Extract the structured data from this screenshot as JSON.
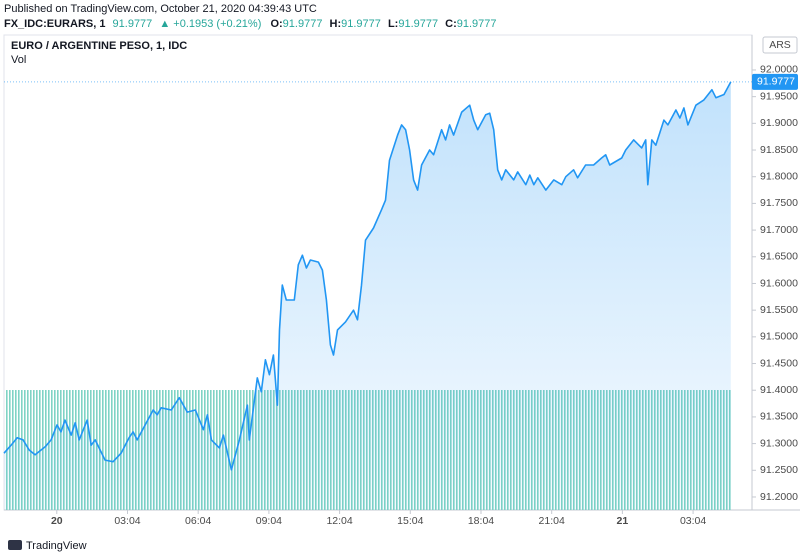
{
  "header": {
    "published": "Published on TradingView.com, October 21, 2020 04:39:43 UTC",
    "symbol": "FX_IDC:EURARS, 1",
    "last": "91.9777",
    "change": "▲ +0.1953 (+0.21%)",
    "ohlc": [
      {
        "label": "O:",
        "value": "91.9777"
      },
      {
        "label": "H:",
        "value": "91.9777"
      },
      {
        "label": "L:",
        "value": "91.9777"
      },
      {
        "label": "C:",
        "value": "91.9777"
      }
    ],
    "currency": "ARS",
    "brand": "TradingView"
  },
  "chart_data": {
    "type": "area",
    "volume_label": "Vol",
    "last_price_label": "91.9777",
    "series": [
      {
        "name": "EURO / ARGENTINE PESO, 1, IDC",
        "color": "#2196f3",
        "x": [
          -2.17,
          -1.87,
          -1.61,
          -1.36,
          -1.1,
          -0.85,
          -0.42,
          -0.17,
          0.08,
          0.25,
          0.42,
          0.68,
          0.85,
          1.02,
          1.36,
          1.53,
          1.7,
          2.12,
          2.46,
          2.8,
          3.14,
          3.31,
          3.48,
          3.82,
          4.16,
          4.33,
          4.5,
          4.93,
          5.27,
          5.61,
          5.95,
          6.29,
          6.46,
          6.63,
          6.97,
          7.14,
          7.48,
          7.82,
          8.16,
          8.24,
          8.58,
          8.75,
          8.92,
          9.09,
          9.26,
          9.43,
          9.52,
          9.64,
          9.81,
          10.15,
          10.32,
          10.49,
          10.66,
          10.83,
          11.17,
          11.34,
          11.51,
          11.68,
          11.81,
          11.98,
          12.32,
          12.66,
          12.83,
          13.0,
          13.17,
          13.51,
          13.85,
          14.02,
          14.19,
          14.53,
          14.7,
          14.87,
          15.04,
          15.21,
          15.38,
          15.55,
          15.89,
          16.06,
          16.4,
          16.57,
          16.74,
          16.91,
          17.25,
          17.59,
          17.76,
          17.93,
          18.27,
          18.44,
          18.61,
          18.78,
          18.95,
          19.12,
          19.46,
          19.63,
          19.97,
          20.14,
          20.31,
          20.48,
          20.82,
          21.16,
          21.5,
          21.67,
          22.0,
          22.17,
          22.51,
          22.85,
          23.19,
          23.36,
          23.53,
          24.04,
          24.21,
          24.55,
          24.89,
          25.06,
          25.15,
          25.32,
          25.49,
          25.83,
          26.0,
          26.34,
          26.51,
          26.68,
          26.85,
          27.19,
          27.53,
          27.87,
          28.04,
          28.38,
          28.67
        ],
        "values": [
          91.282,
          91.297,
          91.311,
          91.307,
          91.288,
          91.279,
          91.294,
          91.307,
          91.335,
          91.322,
          91.344,
          91.316,
          91.339,
          91.307,
          91.344,
          91.297,
          91.307,
          91.269,
          91.266,
          91.282,
          91.311,
          91.322,
          91.307,
          91.335,
          91.363,
          91.354,
          91.367,
          91.363,
          91.386,
          91.359,
          91.363,
          91.326,
          91.354,
          91.307,
          91.292,
          91.316,
          91.251,
          91.307,
          91.372,
          91.307,
          91.423,
          91.397,
          91.457,
          91.429,
          91.466,
          91.372,
          91.513,
          91.597,
          91.569,
          91.569,
          91.635,
          91.653,
          91.629,
          91.644,
          91.64,
          91.625,
          91.569,
          91.485,
          91.466,
          91.513,
          91.528,
          91.55,
          91.532,
          91.597,
          91.681,
          91.704,
          91.738,
          91.756,
          91.831,
          91.878,
          91.897,
          91.888,
          91.85,
          91.794,
          91.775,
          91.822,
          91.85,
          91.841,
          91.888,
          91.869,
          91.897,
          91.878,
          91.921,
          91.934,
          91.906,
          91.888,
          91.916,
          91.919,
          91.888,
          91.813,
          91.794,
          91.813,
          91.794,
          91.809,
          91.785,
          91.803,
          91.785,
          91.798,
          91.775,
          91.794,
          91.785,
          91.8,
          91.813,
          91.798,
          91.822,
          91.822,
          91.835,
          91.841,
          91.822,
          91.835,
          91.85,
          91.869,
          91.854,
          91.869,
          91.785,
          91.869,
          91.859,
          91.906,
          91.897,
          91.925,
          91.91,
          91.929,
          91.897,
          91.934,
          91.944,
          91.963,
          91.948,
          91.954,
          91.9777
        ]
      }
    ],
    "xlim": [
      -2.17,
      29.57
    ],
    "xticks": [
      {
        "value": 0.07,
        "label": "20"
      },
      {
        "value": 3.07,
        "label": "03:04"
      },
      {
        "value": 6.07,
        "label": "06:04"
      },
      {
        "value": 9.07,
        "label": "09:04"
      },
      {
        "value": 12.07,
        "label": "12:04"
      },
      {
        "value": 15.07,
        "label": "15:04"
      },
      {
        "value": 18.07,
        "label": "18:04"
      },
      {
        "value": 21.07,
        "label": "21:04"
      },
      {
        "value": 24.07,
        "label": "21"
      },
      {
        "value": 27.07,
        "label": "03:04"
      }
    ],
    "ylim": [
      91.1756,
      92.0655
    ],
    "yticks": [
      {
        "value": 91.2,
        "label": "91.2000"
      },
      {
        "value": 91.25,
        "label": "91.2500"
      },
      {
        "value": 91.3,
        "label": "91.3000"
      },
      {
        "value": 91.35,
        "label": "91.3500"
      },
      {
        "value": 91.4,
        "label": "91.4000"
      },
      {
        "value": 91.45,
        "label": "91.4500"
      },
      {
        "value": 91.5,
        "label": "91.5000"
      },
      {
        "value": 91.55,
        "label": "91.5500"
      },
      {
        "value": 91.6,
        "label": "91.6000"
      },
      {
        "value": 91.65,
        "label": "91.6500"
      },
      {
        "value": 91.7,
        "label": "91.7000"
      },
      {
        "value": 91.75,
        "label": "91.7500"
      },
      {
        "value": 91.8,
        "label": "91.8000"
      },
      {
        "value": 91.85,
        "label": "91.8500"
      },
      {
        "value": 91.9,
        "label": "91.9000"
      },
      {
        "value": 91.95,
        "label": "91.9500"
      },
      {
        "value": 92.0,
        "label": "92.0000"
      }
    ],
    "grid": false
  }
}
